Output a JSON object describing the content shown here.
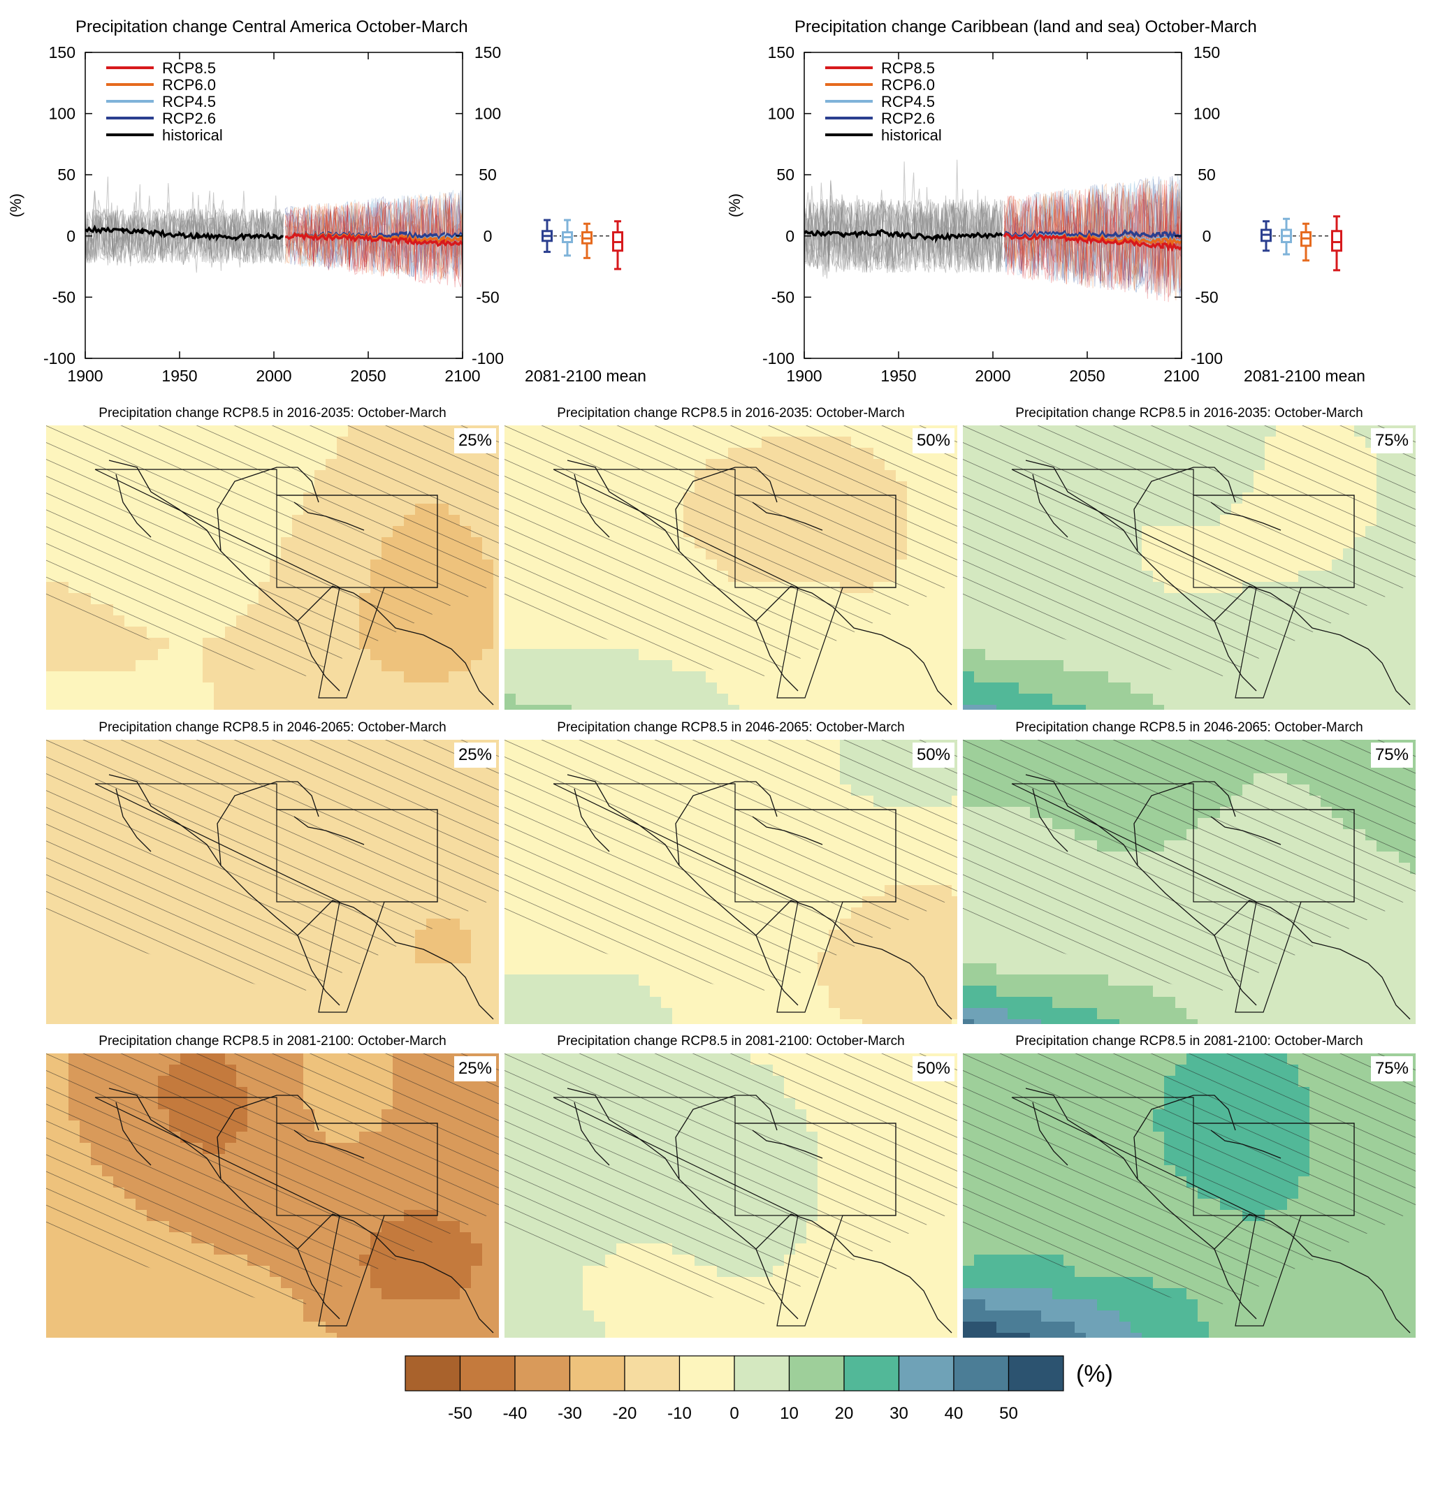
{
  "colors": {
    "rcp85": "#d7191c",
    "rcp60": "#e66a1e",
    "rcp45": "#7fb3d9",
    "rcp26": "#2b3f8f",
    "historical": "#000000",
    "spread": "#888888"
  },
  "chart_data": [
    {
      "type": "line",
      "title": "Precipitation change Central America October-March",
      "ylabel": "(%)",
      "xlim": [
        1900,
        2100
      ],
      "ylim": [
        -100,
        150
      ],
      "x_ticks": [
        1900,
        1950,
        2000,
        2050,
        2100
      ],
      "y_ticks": [
        150,
        100,
        50,
        0,
        -50,
        -100
      ],
      "grid": false,
      "legend_position": "top-left",
      "legend": [
        "RCP8.5",
        "RCP6.0",
        "RCP4.5",
        "RCP2.6",
        "historical"
      ],
      "series": [
        {
          "name": "historical",
          "x": [
            1900,
            1910,
            1920,
            1930,
            1940,
            1950,
            1960,
            1970,
            1980,
            1990,
            2000,
            2005
          ],
          "y": [
            6,
            5,
            4,
            3,
            2,
            1,
            0,
            0,
            -1,
            0,
            0,
            0
          ]
        },
        {
          "name": "RCP2.6",
          "x": [
            2006,
            2030,
            2050,
            2070,
            2090,
            2100
          ],
          "y": [
            0,
            1,
            0,
            1,
            0,
            0
          ]
        },
        {
          "name": "RCP4.5",
          "x": [
            2006,
            2030,
            2050,
            2070,
            2090,
            2100
          ],
          "y": [
            0,
            0,
            -1,
            -2,
            -2,
            -2
          ]
        },
        {
          "name": "RCP6.0",
          "x": [
            2006,
            2030,
            2050,
            2070,
            2090,
            2100
          ],
          "y": [
            0,
            0,
            -1,
            -2,
            -3,
            -3
          ]
        },
        {
          "name": "RCP8.5",
          "x": [
            2006,
            2030,
            2050,
            2070,
            2090,
            2100
          ],
          "y": [
            0,
            -1,
            -2,
            -4,
            -6,
            -7
          ]
        }
      ],
      "box_label": "2081-2100 mean",
      "boxplots": [
        {
          "name": "RCP2.6",
          "whisker_low": -13,
          "q1": -4,
          "median": 0,
          "q3": 4,
          "whisker_high": 13
        },
        {
          "name": "RCP4.5",
          "whisker_low": -16,
          "q1": -5,
          "median": -1,
          "q3": 3,
          "whisker_high": 13
        },
        {
          "name": "RCP6.0",
          "whisker_low": -18,
          "q1": -6,
          "median": -2,
          "q3": 3,
          "whisker_high": 10
        },
        {
          "name": "RCP8.5",
          "whisker_low": -27,
          "q1": -12,
          "median": -5,
          "q3": 3,
          "whisker_high": 12
        }
      ]
    },
    {
      "type": "line",
      "title": "Precipitation change Caribbean (land and sea) October-March",
      "ylabel": "(%)",
      "xlim": [
        1900,
        2100
      ],
      "ylim": [
        -100,
        150
      ],
      "x_ticks": [
        1900,
        1950,
        2000,
        2050,
        2100
      ],
      "y_ticks": [
        150,
        100,
        50,
        0,
        -50,
        -100
      ],
      "grid": false,
      "legend_position": "top-left",
      "legend": [
        "RCP8.5",
        "RCP6.0",
        "RCP4.5",
        "RCP2.6",
        "historical"
      ],
      "series": [
        {
          "name": "historical",
          "x": [
            1900,
            1910,
            1920,
            1930,
            1940,
            1950,
            1960,
            1970,
            1980,
            1990,
            2000,
            2005
          ],
          "y": [
            3,
            2,
            1,
            2,
            3,
            1,
            0,
            -1,
            0,
            1,
            0,
            0
          ]
        },
        {
          "name": "RCP2.6",
          "x": [
            2006,
            2030,
            2050,
            2070,
            2090,
            2100
          ],
          "y": [
            1,
            2,
            1,
            2,
            1,
            1
          ]
        },
        {
          "name": "RCP4.5",
          "x": [
            2006,
            2030,
            2050,
            2070,
            2090,
            2100
          ],
          "y": [
            0,
            0,
            -1,
            -2,
            -3,
            -3
          ]
        },
        {
          "name": "RCP6.0",
          "x": [
            2006,
            2030,
            2050,
            2070,
            2090,
            2100
          ],
          "y": [
            0,
            -1,
            -1,
            -3,
            -4,
            -4
          ]
        },
        {
          "name": "RCP8.5",
          "x": [
            2006,
            2030,
            2050,
            2070,
            2090,
            2100
          ],
          "y": [
            0,
            -1,
            -3,
            -5,
            -8,
            -9
          ]
        }
      ],
      "box_label": "2081-2100 mean",
      "boxplots": [
        {
          "name": "RCP2.6",
          "whisker_low": -12,
          "q1": -4,
          "median": 1,
          "q3": 5,
          "whisker_high": 12
        },
        {
          "name": "RCP4.5",
          "whisker_low": -15,
          "q1": -5,
          "median": 0,
          "q3": 5,
          "whisker_high": 14
        },
        {
          "name": "RCP6.0",
          "whisker_low": -20,
          "q1": -8,
          "median": -2,
          "q3": 3,
          "whisker_high": 10
        },
        {
          "name": "RCP8.5",
          "whisker_low": -28,
          "q1": -12,
          "median": -5,
          "q3": 4,
          "whisker_high": 16
        }
      ]
    },
    {
      "type": "heatmap",
      "colorbar": {
        "levels": [
          "-50",
          "-40",
          "-30",
          "-20",
          "-10",
          "0",
          "10",
          "20",
          "30",
          "40",
          "50"
        ],
        "colors": [
          "#a9622c",
          "#c47a3d",
          "#d99a5a",
          "#eec27c",
          "#f6dca0",
          "#fdf5bd",
          "#d4e8c0",
          "#9ecf9a",
          "#52b898",
          "#6fa2b7",
          "#4b7d96",
          "#2c5370"
        ],
        "unit": "(%)"
      },
      "maps": [
        {
          "title": "Precipitation change RCP8.5 in 2016-2035: October-March",
          "percentile": "25%",
          "level": -0.8
        },
        {
          "title": "Precipitation change RCP8.5 in 2016-2035: October-March",
          "percentile": "50%",
          "level": 0.3
        },
        {
          "title": "Precipitation change RCP8.5 in 2016-2035: October-March",
          "percentile": "75%",
          "level": 1.2
        },
        {
          "title": "Precipitation change RCP8.5 in 2046-2065: October-March",
          "percentile": "25%",
          "level": -1.4
        },
        {
          "title": "Precipitation change RCP8.5 in 2046-2065: October-March",
          "percentile": "50%",
          "level": 0.1
        },
        {
          "title": "Precipitation change RCP8.5 in 2046-2065: October-March",
          "percentile": "75%",
          "level": 1.6
        },
        {
          "title": "Precipitation change RCP8.5 in 2081-2100: October-March",
          "percentile": "25%",
          "level": -2.2
        },
        {
          "title": "Precipitation change RCP8.5 in 2081-2100: October-March",
          "percentile": "50%",
          "level": 0.0
        },
        {
          "title": "Precipitation change RCP8.5 in 2081-2100: October-March",
          "percentile": "75%",
          "level": 2.0
        }
      ]
    }
  ]
}
